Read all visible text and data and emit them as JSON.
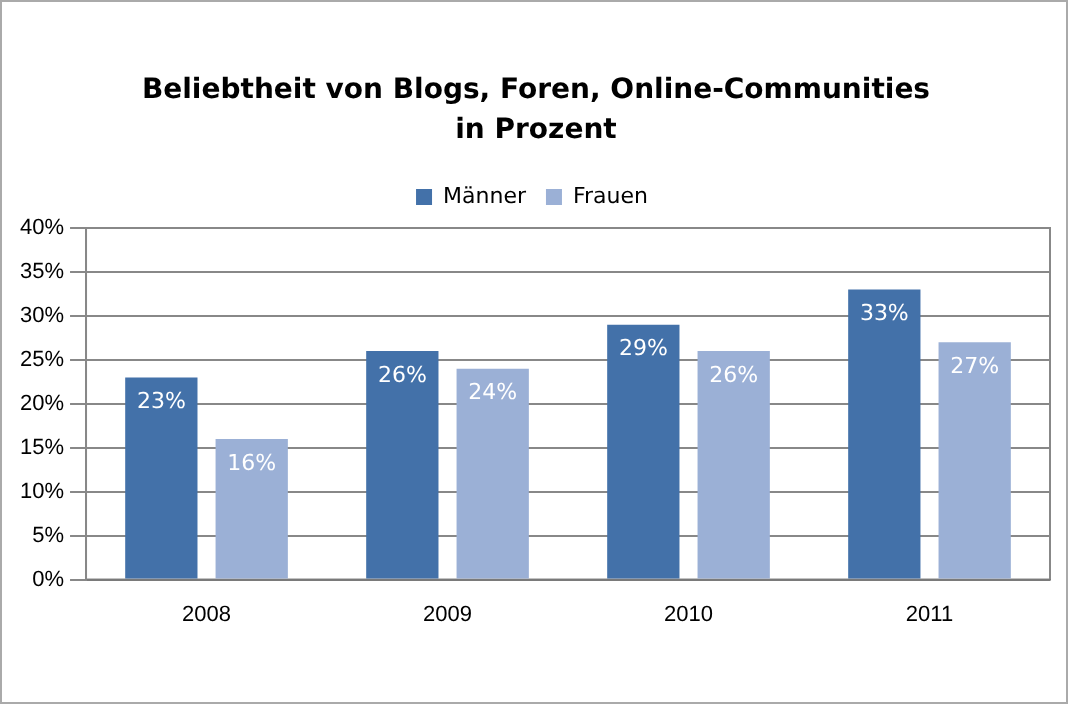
{
  "chart_data": {
    "type": "bar",
    "title": "Beliebtheit von Blogs, Foren, Online-Communities\nin Prozent",
    "categories": [
      "2008",
      "2009",
      "2010",
      "2011"
    ],
    "series": [
      {
        "name": "Männer",
        "color": "#4371a9",
        "values": [
          23,
          26,
          29,
          33
        ],
        "value_labels": [
          "23%",
          "26%",
          "29%",
          "33%"
        ]
      },
      {
        "name": "Frauen",
        "color": "#9bb0d6",
        "values": [
          16,
          24,
          26,
          27
        ],
        "value_labels": [
          "16%",
          "24%",
          "26%",
          "27%"
        ]
      }
    ],
    "ylim": [
      0,
      40
    ],
    "yticks": [
      {
        "value": 0,
        "label": "0%"
      },
      {
        "value": 5,
        "label": "5%"
      },
      {
        "value": 10,
        "label": "10%"
      },
      {
        "value": 15,
        "label": "15%"
      },
      {
        "value": 20,
        "label": "20%"
      },
      {
        "value": 25,
        "label": "25%"
      },
      {
        "value": 30,
        "label": "30%"
      },
      {
        "value": 35,
        "label": "35%"
      },
      {
        "value": 40,
        "label": "40%"
      }
    ],
    "grid": "y",
    "legend": "top"
  }
}
